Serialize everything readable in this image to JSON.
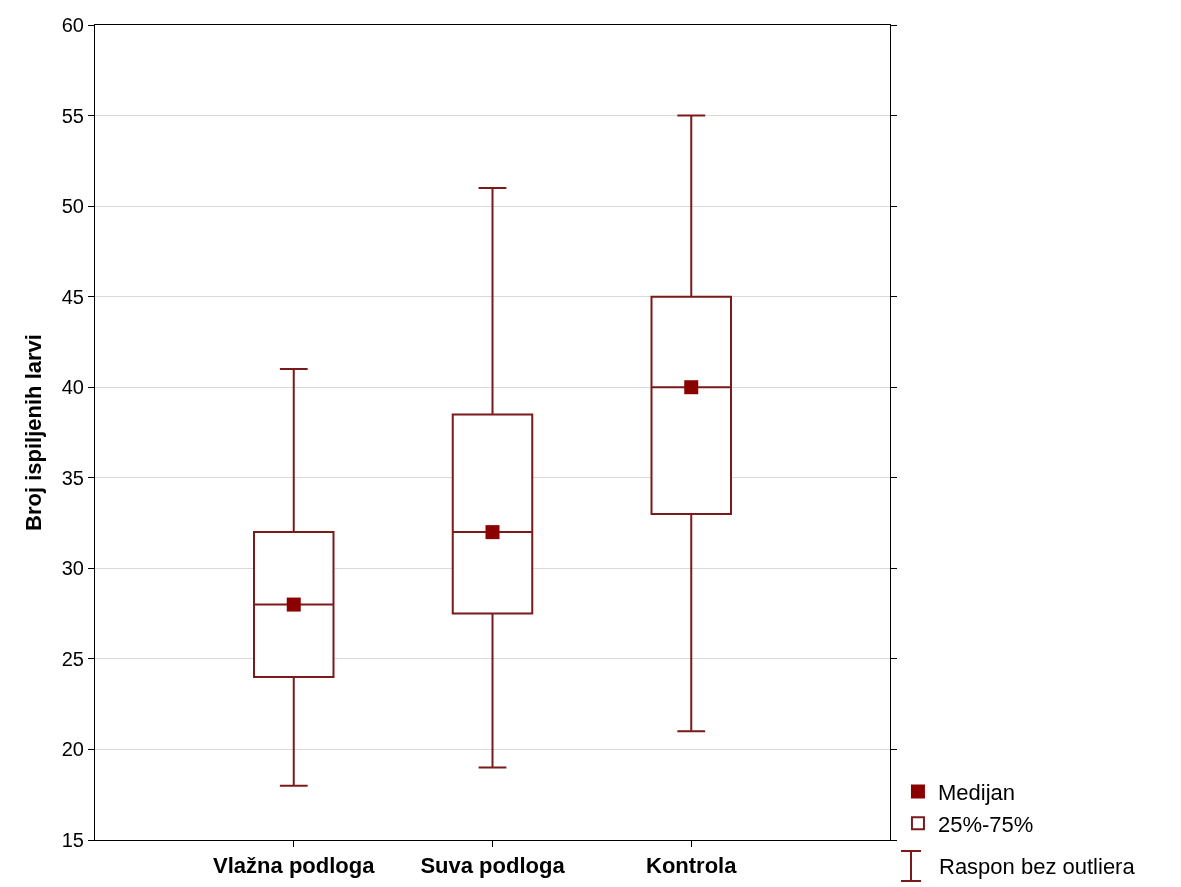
{
  "chart_data": {
    "type": "box",
    "ylabel": "Broj ispiljenih larvi",
    "categories": [
      "Vlažna podloga",
      "Suva podloga",
      "Kontrola"
    ],
    "series": [
      {
        "name": "Medijan",
        "type": "scatter",
        "marker": "square",
        "color": "#8b0000",
        "x": [
          "Vlažna podloga",
          "Suva podloga",
          "Kontrola"
        ],
        "values": [
          28,
          32,
          40
        ]
      },
      {
        "name": "25%-75%",
        "type": "box",
        "color": "#7b1a1a",
        "boxes": [
          {
            "low": 18,
            "q1": 24,
            "median": 28,
            "q3": 32,
            "high": 41
          },
          {
            "low": 19,
            "q1": 27.5,
            "median": 32,
            "q3": 38.5,
            "high": 51
          },
          {
            "low": 21,
            "q1": 33,
            "median": 40,
            "q3": 45,
            "high": 55
          }
        ]
      }
    ],
    "annotations": [
      "Raspon bez outliera"
    ],
    "ylim": [
      15,
      60
    ],
    "yticks": [
      15,
      20,
      25,
      30,
      35,
      40,
      45,
      50,
      55,
      60
    ],
    "grid": "y",
    "legend": "bottom right"
  }
}
